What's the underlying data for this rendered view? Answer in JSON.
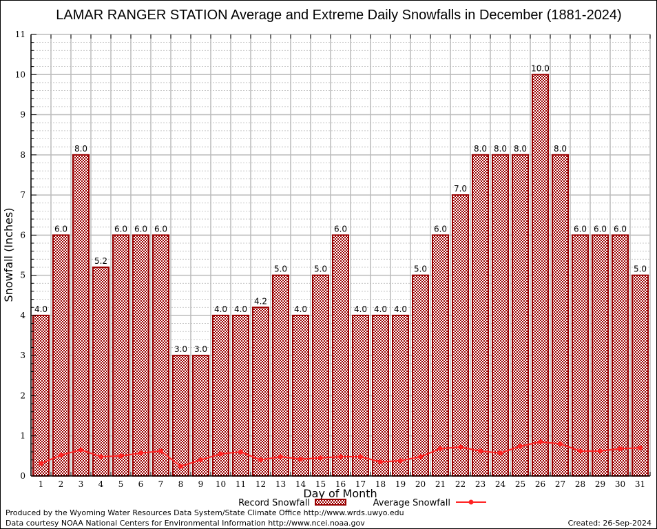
{
  "chart_data": {
    "type": "bar",
    "title": "LAMAR RANGER STATION Average and Extreme Daily Snowfalls in December (1881-2024)",
    "xlabel": "Day of Month",
    "ylabel": "Snowfall (Inches)",
    "ylim": [
      0,
      11
    ],
    "yticks": [
      0,
      1,
      2,
      3,
      4,
      5,
      6,
      7,
      8,
      9,
      10,
      11
    ],
    "grid": true,
    "categories": [
      "1",
      "2",
      "3",
      "4",
      "5",
      "6",
      "7",
      "8",
      "9",
      "10",
      "11",
      "12",
      "13",
      "14",
      "15",
      "16",
      "17",
      "18",
      "19",
      "20",
      "21",
      "22",
      "23",
      "24",
      "25",
      "26",
      "27",
      "28",
      "29",
      "30",
      "31"
    ],
    "series": [
      {
        "name": "Record Snowfall",
        "type": "bar",
        "values": [
          4.0,
          6.0,
          8.0,
          5.2,
          6.0,
          6.0,
          6.0,
          3.0,
          3.0,
          4.0,
          4.0,
          4.2,
          5.0,
          4.0,
          5.0,
          6.0,
          4.0,
          4.0,
          4.0,
          5.0,
          6.0,
          7.0,
          8.0,
          8.0,
          8.0,
          10.0,
          8.0,
          6.0,
          6.0,
          6.0,
          5.0
        ],
        "labels": [
          "4.0",
          "6.0",
          "8.0",
          "5.2",
          "6.0",
          "6.0",
          "6.0",
          "3.0",
          "3.0",
          "4.0",
          "4.0",
          "4.2",
          "5.0",
          "4.0",
          "5.0",
          "6.0",
          "4.0",
          "4.0",
          "4.0",
          "5.0",
          "6.0",
          "7.0",
          "8.0",
          "8.0",
          "8.0",
          "10.0",
          "8.0",
          "6.0",
          "6.0",
          "6.0",
          "5.0"
        ],
        "color": "#990000"
      },
      {
        "name": "Average Snowfall",
        "type": "line",
        "values": [
          0.31,
          0.52,
          0.65,
          0.48,
          0.5,
          0.57,
          0.62,
          0.24,
          0.4,
          0.55,
          0.6,
          0.4,
          0.48,
          0.42,
          0.45,
          0.48,
          0.48,
          0.35,
          0.38,
          0.48,
          0.68,
          0.72,
          0.62,
          0.57,
          0.74,
          0.85,
          0.8,
          0.62,
          0.62,
          0.68,
          0.7
        ],
        "color": "#ff2222"
      }
    ],
    "legend": {
      "placement": "bottom-center",
      "record_label": "Record Snowfall",
      "average_label": "Average Snowfall"
    }
  },
  "footer": {
    "line1": "Produced by the Wyoming Water Resources Data System/State Climate Office http://www.wrds.uwyo.edu",
    "line2": "Data courtesy NOAA National Centers for Environmental Information http://www.ncei.noaa.gov",
    "created": "Created: 26-Sep-2024"
  }
}
